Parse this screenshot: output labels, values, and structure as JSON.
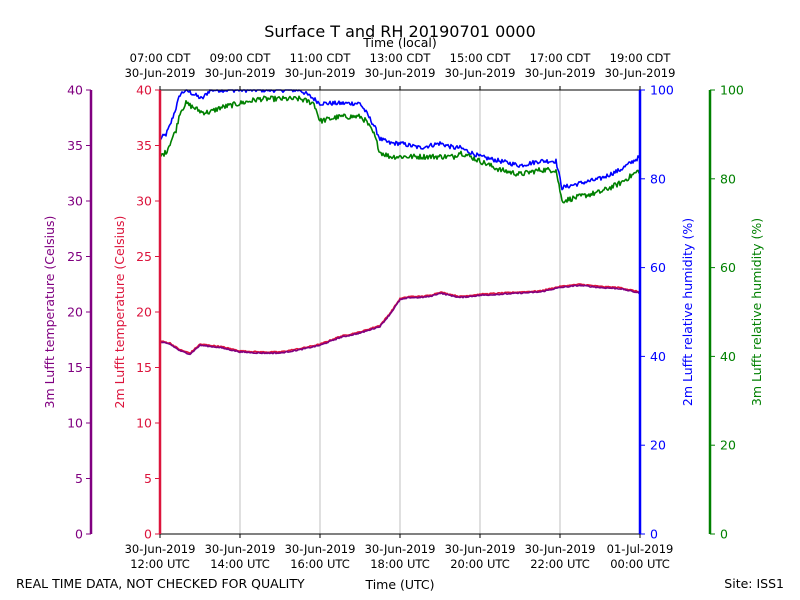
{
  "chart_data": {
    "type": "line",
    "title": "Surface T and RH 20190701 0000",
    "top_axis_label": "Time (local)",
    "xlabel": "Time (UTC)",
    "x_range": [
      "2019-06-30T12:00Z",
      "2019-07-01T00:00Z"
    ],
    "x_tick_times": [
      "2019-06-30T12:00Z",
      "2019-06-30T14:00Z",
      "2019-06-30T16:00Z",
      "2019-06-30T18:00Z",
      "2019-06-30T20:00Z",
      "2019-06-30T22:00Z",
      "2019-07-01T00:00Z"
    ],
    "x_ticks_utc": [
      [
        "30-Jun-2019",
        "12:00 UTC"
      ],
      [
        "30-Jun-2019",
        "14:00 UTC"
      ],
      [
        "30-Jun-2019",
        "16:00 UTC"
      ],
      [
        "30-Jun-2019",
        "18:00 UTC"
      ],
      [
        "30-Jun-2019",
        "20:00 UTC"
      ],
      [
        "30-Jun-2019",
        "22:00 UTC"
      ],
      [
        "01-Jul-2019",
        "00:00 UTC"
      ]
    ],
    "x_ticks_local": [
      [
        "07:00 CDT",
        "30-Jun-2019"
      ],
      [
        "09:00 CDT",
        "30-Jun-2019"
      ],
      [
        "11:00 CDT",
        "30-Jun-2019"
      ],
      [
        "13:00 CDT",
        "30-Jun-2019"
      ],
      [
        "15:00 CDT",
        "30-Jun-2019"
      ],
      [
        "17:00 CDT",
        "30-Jun-2019"
      ],
      [
        "19:00 CDT",
        "30-Jun-2019"
      ]
    ],
    "grid": "vertical",
    "axes": {
      "t3m": {
        "label": "3m Lufft temperature (Celsius)",
        "ylim": [
          0,
          40
        ],
        "ticks": [
          "0",
          "5",
          "10",
          "15",
          "20",
          "25",
          "30",
          "35",
          "40"
        ],
        "color": "#800080"
      },
      "t2m": {
        "label": "2m Lufft temperature (Celsius)",
        "ylim": [
          0,
          40
        ],
        "ticks": [
          "0",
          "5",
          "10",
          "15",
          "20",
          "25",
          "30",
          "35",
          "40"
        ],
        "color": "#dc143c"
      },
      "rh2m": {
        "label": "2m Lufft relative humidity (%)",
        "ylim": [
          0,
          100
        ],
        "ticks": [
          "0",
          "20",
          "40",
          "60",
          "80",
          "100"
        ],
        "color": "#0000ff"
      },
      "rh3m": {
        "label": "3m Lufft relative humidity (%)",
        "ylim": [
          0,
          100
        ],
        "ticks": [
          "0",
          "20",
          "40",
          "60",
          "80",
          "100"
        ],
        "color": "#008000"
      }
    },
    "series": [
      {
        "axis": "rh2m",
        "color": "#0000ff",
        "noise": 0.5,
        "x": [
          "2019-06-30T12:00Z",
          "2019-06-30T12:09Z",
          "2019-06-30T12:15Z",
          "2019-06-30T12:24Z",
          "2019-06-30T12:30Z",
          "2019-06-30T12:39Z",
          "2019-06-30T12:51Z",
          "2019-06-30T13:03Z",
          "2019-06-30T13:15Z",
          "2019-06-30T13:30Z",
          "2019-06-30T14:00Z",
          "2019-06-30T14:30Z",
          "2019-06-30T15:00Z",
          "2019-06-30T15:30Z",
          "2019-06-30T15:51Z",
          "2019-06-30T16:00Z",
          "2019-06-30T16:30Z",
          "2019-06-30T17:00Z",
          "2019-06-30T17:09Z",
          "2019-06-30T17:21Z",
          "2019-06-30T17:30Z",
          "2019-06-30T17:45Z",
          "2019-06-30T18:00Z",
          "2019-06-30T18:30Z",
          "2019-06-30T19:00Z",
          "2019-06-30T19:21Z",
          "2019-06-30T19:30Z",
          "2019-06-30T20:00Z",
          "2019-06-30T20:30Z",
          "2019-06-30T21:00Z",
          "2019-06-30T21:30Z",
          "2019-06-30T21:54Z",
          "2019-06-30T22:03Z",
          "2019-06-30T22:30Z",
          "2019-06-30T23:00Z",
          "2019-06-30T23:30Z",
          "2019-07-01T00:00Z"
        ],
        "values": [
          89,
          90,
          92,
          96,
          99,
          100,
          99,
          98,
          100,
          100,
          100,
          100,
          100,
          100,
          98,
          97,
          97,
          97,
          95,
          92,
          89,
          88,
          88,
          87,
          88,
          87,
          87,
          85,
          84,
          83,
          84,
          84,
          78,
          79,
          80,
          82,
          85
        ]
      },
      {
        "axis": "rh3m",
        "color": "#008000",
        "noise": 0.6,
        "x": [
          "2019-06-30T12:00Z",
          "2019-06-30T12:09Z",
          "2019-06-30T12:15Z",
          "2019-06-30T12:24Z",
          "2019-06-30T12:30Z",
          "2019-06-30T12:39Z",
          "2019-06-30T12:51Z",
          "2019-06-30T13:03Z",
          "2019-06-30T13:15Z",
          "2019-06-30T13:30Z",
          "2019-06-30T14:00Z",
          "2019-06-30T14:30Z",
          "2019-06-30T15:00Z",
          "2019-06-30T15:30Z",
          "2019-06-30T15:51Z",
          "2019-06-30T16:00Z",
          "2019-06-30T16:30Z",
          "2019-06-30T17:00Z",
          "2019-06-30T17:09Z",
          "2019-06-30T17:21Z",
          "2019-06-30T17:30Z",
          "2019-06-30T17:45Z",
          "2019-06-30T18:00Z",
          "2019-06-30T18:30Z",
          "2019-06-30T19:00Z",
          "2019-06-30T19:21Z",
          "2019-06-30T19:30Z",
          "2019-06-30T20:00Z",
          "2019-06-30T20:30Z",
          "2019-06-30T21:00Z",
          "2019-06-30T21:30Z",
          "2019-06-30T21:54Z",
          "2019-06-30T22:03Z",
          "2019-06-30T22:30Z",
          "2019-06-30T23:00Z",
          "2019-06-30T23:30Z",
          "2019-07-01T00:00Z"
        ],
        "values": [
          85,
          86,
          88,
          91,
          95,
          97,
          96,
          95,
          95,
          96,
          97,
          98,
          98,
          98,
          97,
          93,
          94,
          94,
          93,
          90,
          86,
          85,
          85,
          85,
          85,
          85,
          86,
          84,
          82,
          81,
          82,
          82,
          75,
          76,
          77,
          79,
          82
        ]
      },
      {
        "axis": "t2m",
        "color": "#dc143c",
        "noise": 0.05,
        "x": [
          "2019-06-30T12:00Z",
          "2019-06-30T12:15Z",
          "2019-06-30T12:30Z",
          "2019-06-30T12:45Z",
          "2019-06-30T13:00Z",
          "2019-06-30T13:30Z",
          "2019-06-30T14:00Z",
          "2019-06-30T14:30Z",
          "2019-06-30T15:00Z",
          "2019-06-30T15:30Z",
          "2019-06-30T16:00Z",
          "2019-06-30T16:30Z",
          "2019-06-30T17:00Z",
          "2019-06-30T17:15Z",
          "2019-06-30T17:30Z",
          "2019-06-30T17:45Z",
          "2019-06-30T18:00Z",
          "2019-06-30T18:15Z",
          "2019-06-30T18:30Z",
          "2019-06-30T18:45Z",
          "2019-06-30T19:00Z",
          "2019-06-30T19:30Z",
          "2019-06-30T20:00Z",
          "2019-06-30T20:30Z",
          "2019-06-30T21:00Z",
          "2019-06-30T21:30Z",
          "2019-06-30T22:00Z",
          "2019-06-30T22:30Z",
          "2019-06-30T23:00Z",
          "2019-06-30T23:30Z",
          "2019-07-01T00:00Z"
        ],
        "values": [
          17.4,
          17.2,
          16.6,
          16.3,
          17.1,
          16.9,
          16.5,
          16.4,
          16.4,
          16.7,
          17.1,
          17.8,
          18.2,
          18.5,
          18.8,
          19.9,
          21.2,
          21.4,
          21.4,
          21.5,
          21.8,
          21.4,
          21.6,
          21.7,
          21.8,
          21.9,
          22.3,
          22.5,
          22.3,
          22.2,
          21.8
        ]
      },
      {
        "axis": "t3m",
        "color": "#800080",
        "noise": 0.05,
        "x": [
          "2019-06-30T12:00Z",
          "2019-06-30T12:15Z",
          "2019-06-30T12:30Z",
          "2019-06-30T12:45Z",
          "2019-06-30T13:00Z",
          "2019-06-30T13:30Z",
          "2019-06-30T14:00Z",
          "2019-06-30T14:30Z",
          "2019-06-30T15:00Z",
          "2019-06-30T15:30Z",
          "2019-06-30T16:00Z",
          "2019-06-30T16:30Z",
          "2019-06-30T17:00Z",
          "2019-06-30T17:15Z",
          "2019-06-30T17:30Z",
          "2019-06-30T17:45Z",
          "2019-06-30T18:00Z",
          "2019-06-30T18:15Z",
          "2019-06-30T18:30Z",
          "2019-06-30T18:45Z",
          "2019-06-30T19:00Z",
          "2019-06-30T19:30Z",
          "2019-06-30T20:00Z",
          "2019-06-30T20:30Z",
          "2019-06-30T21:00Z",
          "2019-06-30T21:30Z",
          "2019-06-30T22:00Z",
          "2019-06-30T22:30Z",
          "2019-06-30T23:00Z",
          "2019-06-30T23:30Z",
          "2019-07-01T00:00Z"
        ],
        "values": [
          17.3,
          17.1,
          16.5,
          16.2,
          17.0,
          16.8,
          16.4,
          16.3,
          16.3,
          16.6,
          17.0,
          17.7,
          18.1,
          18.4,
          18.7,
          19.8,
          21.1,
          21.3,
          21.3,
          21.4,
          21.7,
          21.3,
          21.5,
          21.6,
          21.7,
          21.8,
          22.2,
          22.4,
          22.2,
          22.1,
          21.7
        ]
      }
    ]
  },
  "footer": {
    "disclaimer": "REAL TIME DATA, NOT CHECKED FOR QUALITY",
    "site": "Site: ISS1"
  }
}
